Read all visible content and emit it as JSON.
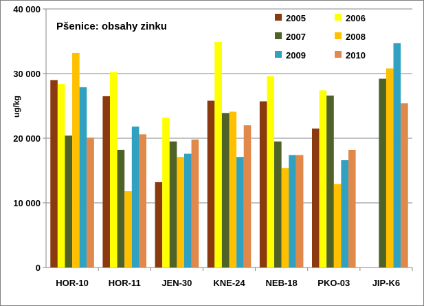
{
  "chart_data": {
    "type": "bar",
    "title": "Pšenice: obsahy zinku",
    "ylabel": "ug/kg",
    "xlabel": "",
    "ylim": [
      0,
      40000
    ],
    "yticks": [
      0,
      10000,
      20000,
      30000,
      40000
    ],
    "ytick_labels": [
      "0",
      "10 000",
      "20 000",
      "30 000",
      "40 000"
    ],
    "grid": "horizontal",
    "legend_position": "top-right",
    "categories": [
      "HOR-10",
      "HOR-11",
      "JEN-30",
      "KNE-24",
      "NEB-18",
      "PKO-03",
      "JIP-K6"
    ],
    "series": [
      {
        "name": "2005",
        "color": "#8b3a0f",
        "values": [
          29000,
          26500,
          13200,
          25800,
          25700,
          21500,
          null
        ]
      },
      {
        "name": "2006",
        "color": "#ffff00",
        "values": [
          28400,
          30200,
          23200,
          34900,
          29600,
          27400,
          null
        ]
      },
      {
        "name": "2007",
        "color": "#4f6228",
        "values": [
          20400,
          18200,
          19500,
          23900,
          19500,
          26600,
          29200
        ]
      },
      {
        "name": "2008",
        "color": "#ffc000",
        "values": [
          33200,
          11800,
          17100,
          24100,
          15400,
          12900,
          30800
        ]
      },
      {
        "name": "2009",
        "color": "#31a1c2",
        "values": [
          27900,
          21800,
          17600,
          17100,
          17400,
          16600,
          34700
        ]
      },
      {
        "name": "2010",
        "color": "#e0894b",
        "values": [
          20100,
          20600,
          19800,
          22000,
          17400,
          18200,
          25400
        ]
      }
    ]
  }
}
